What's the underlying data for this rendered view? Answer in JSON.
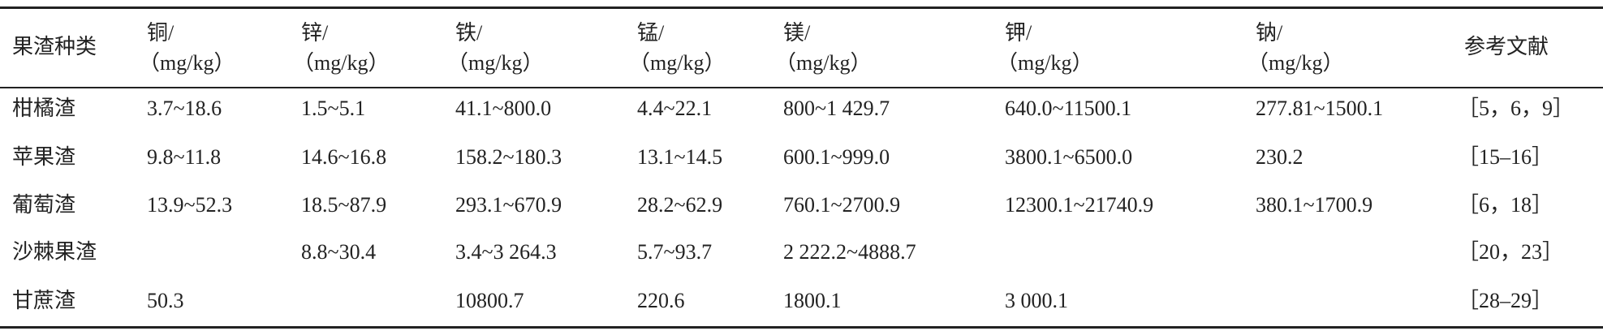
{
  "table": {
    "header": [
      {
        "name": "果渣种类"
      },
      {
        "name": "铜/",
        "unit": "（mg/kg）"
      },
      {
        "name": "锌/",
        "unit": "（mg/kg）"
      },
      {
        "name": "铁/",
        "unit": "（mg/kg）"
      },
      {
        "name": "锰/",
        "unit": "（mg/kg）"
      },
      {
        "name": "镁/",
        "unit": "（mg/kg）"
      },
      {
        "name": "钾/",
        "unit": "（mg/kg）"
      },
      {
        "name": "钠/",
        "unit": "（mg/kg）"
      },
      {
        "name": "参考文献"
      }
    ],
    "rows": [
      [
        "柑橘渣",
        "3.7~18.6",
        "1.5~5.1",
        "41.1~800.0",
        "4.4~22.1",
        "800~1 429.7",
        "640.0~11500.1",
        "277.81~1500.1",
        "［5，6，9］"
      ],
      [
        "苹果渣",
        "9.8~11.8",
        "14.6~16.8",
        "158.2~180.3",
        "13.1~14.5",
        "600.1~999.0",
        "3800.1~6500.0",
        "230.2",
        "［15–16］"
      ],
      [
        "葡萄渣",
        "13.9~52.3",
        "18.5~87.9",
        "293.1~670.9",
        "28.2~62.9",
        "760.1~2700.9",
        "12300.1~21740.9",
        "380.1~1700.9",
        "［6，18］"
      ],
      [
        "沙棘果渣",
        null,
        "8.8~30.4",
        "3.4~3 264.3",
        "5.7~93.7",
        "2 222.2~4888.7",
        null,
        null,
        "［20，23］"
      ],
      [
        "甘蔗渣",
        "50.3",
        null,
        "10800.7",
        "220.6",
        "1800.1",
        "3 000.1",
        null,
        "［28–29］"
      ]
    ]
  }
}
